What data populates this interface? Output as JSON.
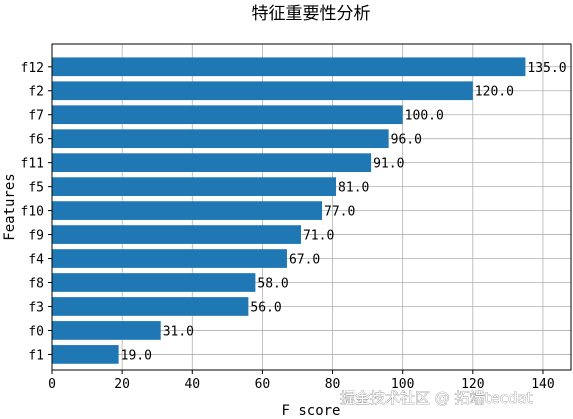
{
  "chart_data": {
    "type": "bar",
    "orientation": "horizontal",
    "title": "特征重要性分析",
    "xlabel": "F score",
    "ylabel": "Features",
    "categories": [
      "f12",
      "f2",
      "f7",
      "f6",
      "f11",
      "f5",
      "f10",
      "f9",
      "f4",
      "f8",
      "f3",
      "f0",
      "f1"
    ],
    "values": [
      135.0,
      120.0,
      100.0,
      96.0,
      91.0,
      81.0,
      77.0,
      71.0,
      67.0,
      58.0,
      56.0,
      31.0,
      19.0
    ],
    "value_labels": [
      "135.0",
      "120.0",
      "100.0",
      "96.0",
      "91.0",
      "81.0",
      "77.0",
      "71.0",
      "67.0",
      "58.0",
      "56.0",
      "31.0",
      "19.0"
    ],
    "xlim": [
      0,
      148
    ],
    "xticks": [
      "0",
      "20",
      "40",
      "60",
      "80",
      "100",
      "120",
      "140"
    ],
    "grid": true,
    "bar_color": "#1f77b4"
  },
  "watermark": "掘金技术社区 @ 拓端tecdat"
}
